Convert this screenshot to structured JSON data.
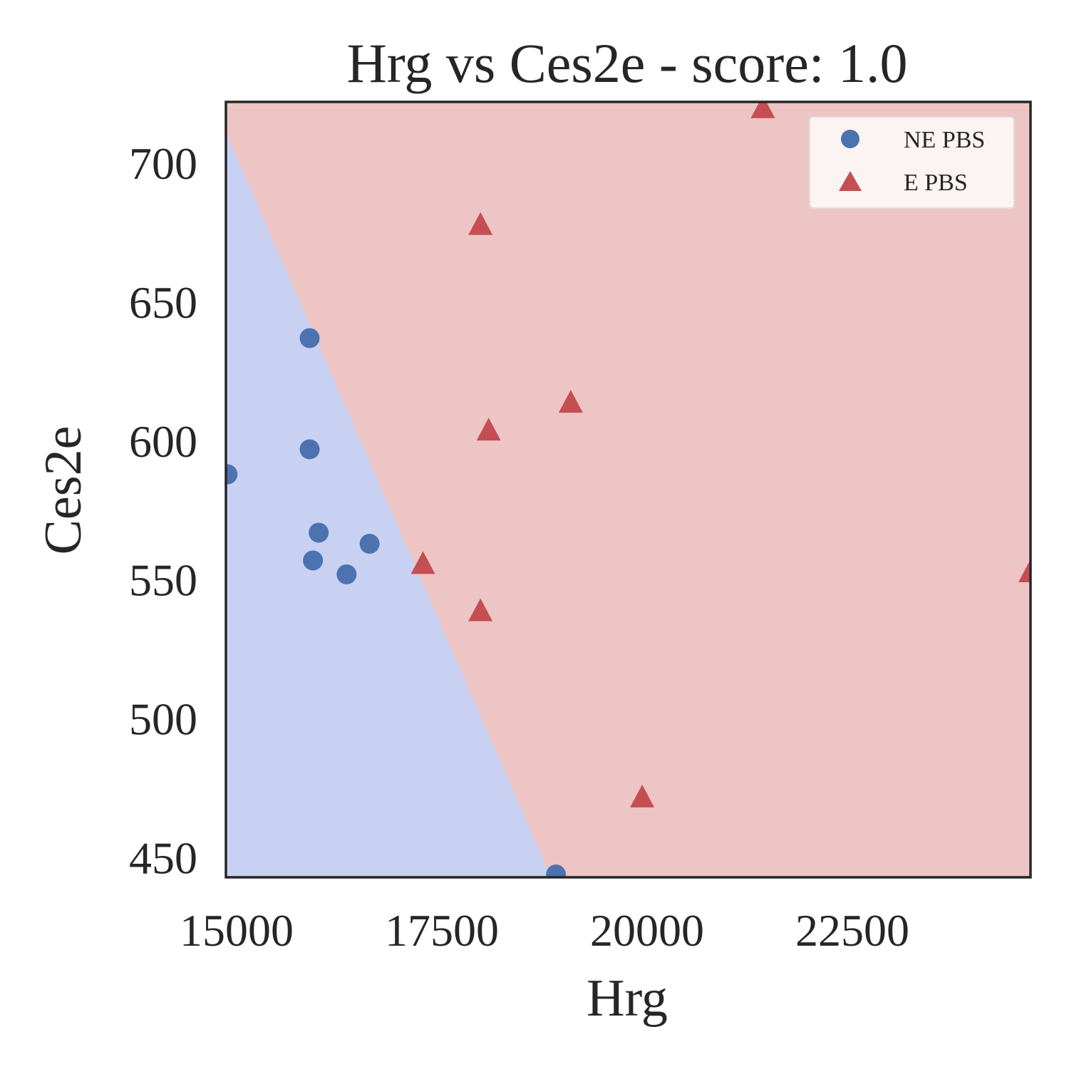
{
  "chart_data": {
    "type": "scatter",
    "title": "Hrg vs Ces2e - score: 1.0",
    "xlabel": "Hrg",
    "ylabel": "Ces2e",
    "xlim": [
      15000,
      24800
    ],
    "ylim": [
      443,
      722
    ],
    "xticks": [
      15000,
      17500,
      20000,
      22500
    ],
    "xtick_labels": [
      "15000",
      "17500",
      "20000",
      "22500"
    ],
    "yticks": [
      450,
      500,
      550,
      600,
      650,
      700
    ],
    "ytick_labels": [
      "450",
      "500",
      "550",
      "600",
      "650",
      "700"
    ],
    "grid": false,
    "legend_position": "top-right",
    "decision_boundary": {
      "points": [
        [
          15000,
          711
        ],
        [
          18960,
          443
        ]
      ],
      "left_region_class": "NE PBS",
      "right_region_class": "E PBS"
    },
    "region_colors": {
      "NE PBS": "#c8d1f2",
      "E PBS": "#eec5c5"
    },
    "series": [
      {
        "name": "NE PBS",
        "marker": "circle",
        "color": "#4c72b0",
        "points": [
          [
            15020,
            588
          ],
          [
            16020,
            637
          ],
          [
            16020,
            597
          ],
          [
            16130,
            567
          ],
          [
            16060,
            557
          ],
          [
            16470,
            552
          ],
          [
            16750,
            563
          ],
          [
            19020,
            444
          ]
        ]
      },
      {
        "name": "E PBS",
        "marker": "triangle",
        "color": "#c44e52",
        "points": [
          [
            17400,
            556
          ],
          [
            18100,
            678
          ],
          [
            18200,
            604
          ],
          [
            19200,
            614
          ],
          [
            18100,
            539
          ],
          [
            20070,
            472
          ],
          [
            21540,
            720
          ],
          [
            24800,
            553
          ]
        ]
      }
    ]
  }
}
